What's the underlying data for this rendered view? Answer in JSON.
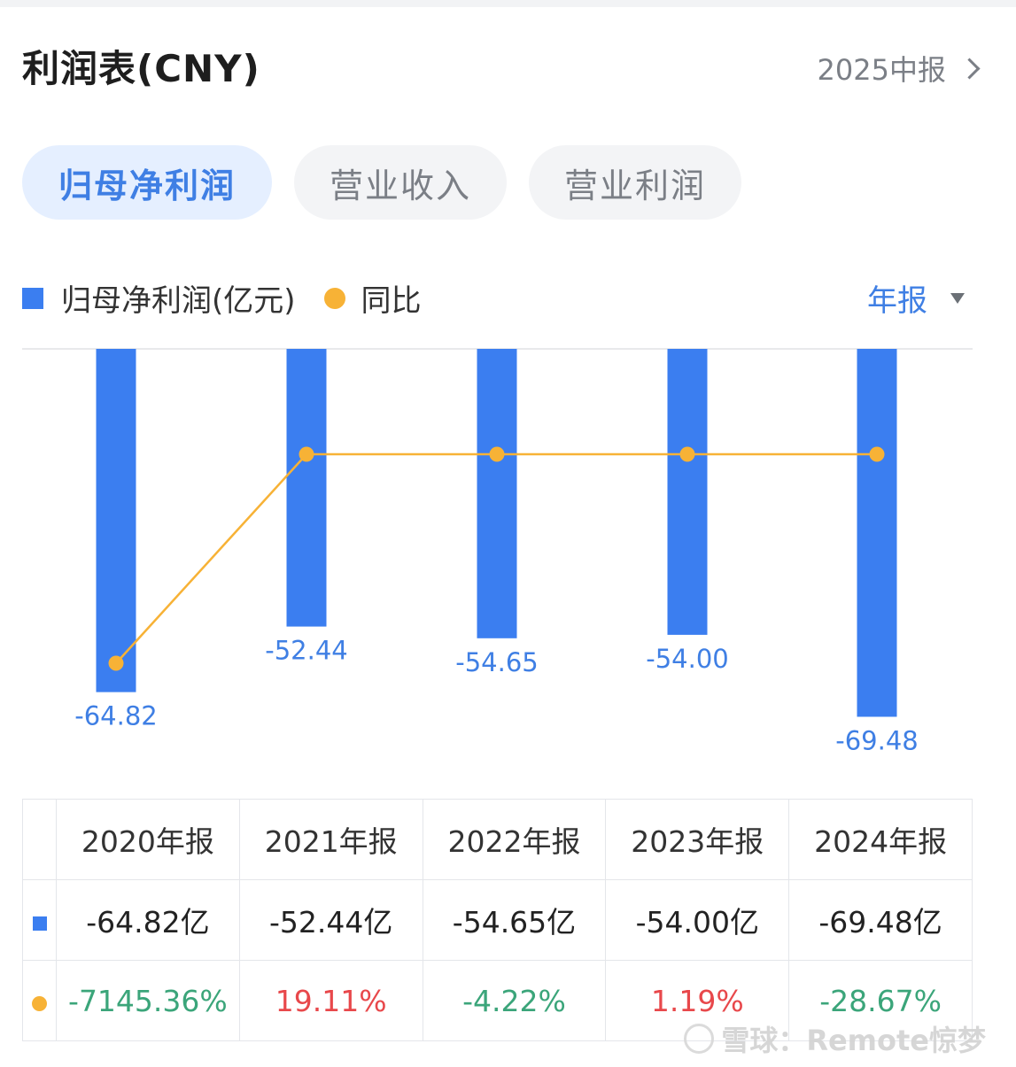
{
  "header": {
    "title": "利润表(CNY)",
    "period": "2025中报"
  },
  "tabs": [
    {
      "label": "归母净利润",
      "active": true
    },
    {
      "label": "营业收入",
      "active": false
    },
    {
      "label": "营业利润",
      "active": false
    }
  ],
  "legend": {
    "bar_label": "归母净利润(亿元)",
    "line_label": "同比",
    "report_type": "年报"
  },
  "colors": {
    "bar": "#3b7ef0",
    "line": "#f7b236",
    "accent": "#3f7fe4",
    "negative": "#3ba57a",
    "positive": "#e8484b"
  },
  "chart_data": {
    "type": "bar",
    "categories": [
      "2020年报",
      "2021年报",
      "2022年报",
      "2023年报",
      "2024年报"
    ],
    "series": [
      {
        "name": "归母净利润(亿元)",
        "type": "bar",
        "values": [
          -64.82,
          -52.44,
          -54.65,
          -54.0,
          -69.48
        ],
        "labels": [
          "-64.82",
          "-52.44",
          "-54.65",
          "-54.00",
          "-69.48"
        ]
      },
      {
        "name": "同比",
        "type": "line",
        "values": [
          -7145.36,
          19.11,
          -4.22,
          1.19,
          -28.67
        ]
      }
    ],
    "grid": false,
    "legend_position": "top-left"
  },
  "table": {
    "headers": [
      "2020年报",
      "2021年报",
      "2022年报",
      "2023年报",
      "2024年报"
    ],
    "profit": [
      "-64.82亿",
      "-52.44亿",
      "-54.65亿",
      "-54.00亿",
      "-69.48亿"
    ],
    "yoy": [
      "-7145.36%",
      "19.11%",
      "-4.22%",
      "1.19%",
      "-28.67%"
    ]
  },
  "watermark": "雪球：Remote惊梦"
}
